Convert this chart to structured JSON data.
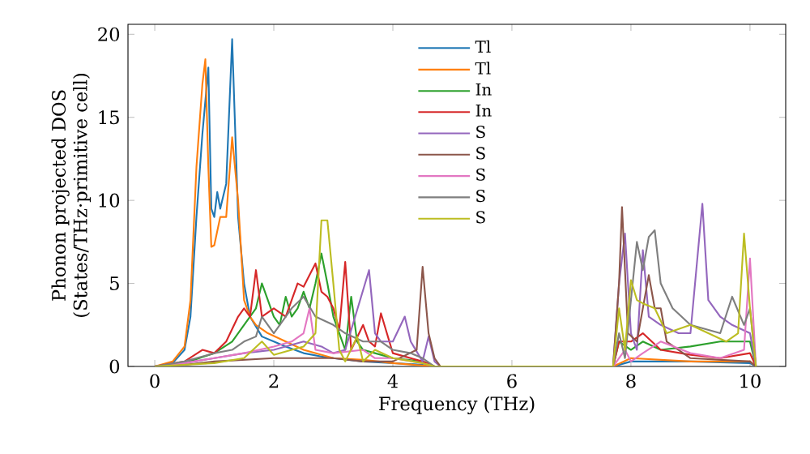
{
  "chart_data": {
    "type": "line",
    "xlabel": "Frequency (THz)",
    "ylabel": "Phonon projected DOS\n(States/THz·primitive cell)",
    "xlim": [
      -0.45,
      10.6
    ],
    "ylim": [
      0,
      20.6
    ],
    "xticks": [
      0,
      2,
      4,
      6,
      8,
      10
    ],
    "yticks": [
      0,
      5,
      10,
      15,
      20
    ],
    "legend": "top",
    "series": [
      {
        "name": "Tl",
        "color": "#1f77b4",
        "x": [
          0,
          0.3,
          0.5,
          0.6,
          0.7,
          0.8,
          0.9,
          0.95,
          1.0,
          1.05,
          1.1,
          1.2,
          1.3,
          1.4,
          1.5,
          1.6,
          1.8,
          2.0,
          2.2,
          2.5,
          2.8,
          3.0,
          3.5,
          4.0,
          4.5,
          4.7,
          7.7,
          8,
          9,
          10,
          10.1
        ],
        "values": [
          0,
          0.2,
          1,
          3,
          9,
          14,
          18,
          9.5,
          9,
          10.5,
          9.5,
          11,
          19.7,
          9,
          5,
          3,
          1.8,
          1.5,
          1.2,
          0.8,
          0.6,
          0.5,
          0.3,
          0.2,
          0.1,
          0,
          0,
          0.3,
          0.3,
          0.2,
          0
        ]
      },
      {
        "name": "Tl",
        "color": "#ff7f0e",
        "x": [
          0,
          0.3,
          0.5,
          0.6,
          0.7,
          0.8,
          0.85,
          0.9,
          0.95,
          1.0,
          1.1,
          1.2,
          1.3,
          1.4,
          1.5,
          1.6,
          1.7,
          1.9,
          2.2,
          2.5,
          3,
          3.5,
          4,
          4.7,
          7.7,
          8,
          9,
          10,
          10.1
        ],
        "values": [
          0,
          0.3,
          1.2,
          4,
          12,
          17,
          18.5,
          12,
          7.2,
          7.3,
          9,
          9,
          13.8,
          10,
          4,
          3,
          2.5,
          2,
          1.5,
          1,
          0.5,
          0.4,
          0.2,
          0,
          0,
          0.5,
          0.3,
          0.3,
          0
        ]
      },
      {
        "name": "In",
        "color": "#2ca02c",
        "x": [
          0,
          0.5,
          1,
          1.3,
          1.5,
          1.7,
          1.8,
          1.9,
          2,
          2.1,
          2.2,
          2.3,
          2.4,
          2.5,
          2.6,
          2.7,
          2.8,
          2.9,
          3.0,
          3.1,
          3.2,
          3.3,
          3.4,
          3.5,
          3.7,
          4,
          4.5,
          4.7,
          7.7,
          7.8,
          8,
          8.2,
          8.5,
          9,
          9.5,
          10,
          10.1
        ],
        "values": [
          0,
          0.2,
          0.8,
          1.5,
          2.5,
          3.5,
          5,
          4,
          3,
          2.5,
          4.2,
          3,
          3.5,
          4.5,
          3.5,
          5,
          6.8,
          5,
          3,
          2,
          1,
          4.2,
          1.5,
          1,
          0.8,
          0.5,
          0.3,
          0,
          0,
          1.5,
          1,
          1.5,
          1,
          1.2,
          1.5,
          1.5,
          0
        ]
      },
      {
        "name": "In",
        "color": "#d62728",
        "x": [
          0,
          0.5,
          0.8,
          1,
          1.2,
          1.4,
          1.5,
          1.6,
          1.7,
          1.8,
          2.0,
          2.2,
          2.4,
          2.5,
          2.6,
          2.7,
          2.8,
          2.9,
          3.0,
          3.1,
          3.2,
          3.3,
          3.5,
          3.6,
          3.7,
          3.8,
          4.0,
          4.5,
          4.7,
          7.7,
          7.8,
          8,
          8.2,
          8.5,
          9,
          9.5,
          10,
          10.1
        ],
        "values": [
          0,
          0.3,
          1,
          0.8,
          1.5,
          3,
          3.5,
          3,
          5.8,
          3,
          3.5,
          3,
          5,
          4.8,
          5.5,
          6.2,
          4.5,
          4.2,
          3.5,
          2.2,
          6.3,
          1,
          2.5,
          1.5,
          1.2,
          3.2,
          0.8,
          0.3,
          0,
          0,
          1.5,
          1.5,
          2,
          1,
          0.7,
          0.5,
          0.8,
          0
        ]
      },
      {
        "name": "S",
        "color": "#9467bd",
        "x": [
          0,
          0.5,
          1,
          1.5,
          2,
          2.5,
          2.8,
          3,
          3.2,
          3.6,
          3.7,
          3.8,
          4,
          4.2,
          4.3,
          4.5,
          4.6,
          4.7,
          4.8,
          7.7,
          7.8,
          7.9,
          8,
          8.1,
          8.2,
          8.3,
          8.5,
          8.8,
          9.0,
          9.2,
          9.3,
          9.5,
          9.7,
          10,
          10.1
        ],
        "values": [
          0,
          0.2,
          0.5,
          0.8,
          1,
          1.5,
          1.2,
          0.8,
          1,
          5.8,
          2,
          1.5,
          1.5,
          3,
          1.5,
          0.3,
          1.8,
          0.3,
          0,
          0,
          5,
          8,
          2,
          1,
          7,
          3,
          2.5,
          2,
          2,
          9.8,
          4,
          3,
          2.5,
          2,
          0
        ]
      },
      {
        "name": "S",
        "color": "#8c564b",
        "x": [
          0,
          0.5,
          1,
          2,
          3,
          3.5,
          4,
          4.4,
          4.5,
          4.6,
          4.7,
          4.8,
          7.7,
          7.8,
          7.85,
          7.95,
          8.1,
          8.3,
          8.4,
          8.5,
          8.6,
          8.8,
          9,
          10,
          10.1
        ],
        "values": [
          0,
          0.1,
          0.3,
          0.5,
          0.5,
          0.3,
          0.3,
          1,
          6,
          2,
          0.5,
          0,
          0,
          5,
          9.6,
          2,
          1.5,
          5.5,
          3.5,
          3.5,
          1.5,
          1,
          0.5,
          0.3,
          0
        ]
      },
      {
        "name": "S",
        "color": "#e377c2",
        "x": [
          0,
          0.5,
          1,
          1.5,
          2,
          2.3,
          2.5,
          2.6,
          2.7,
          3,
          3.5,
          3.7,
          4,
          4.5,
          4.7,
          7.7,
          7.9,
          8,
          8.2,
          8.5,
          9,
          9.5,
          9.9,
          10,
          10.1
        ],
        "values": [
          0,
          0.2,
          0.5,
          0.8,
          1.2,
          1.5,
          2,
          3.5,
          1,
          0.8,
          1,
          0.5,
          0.5,
          0.2,
          0,
          0,
          1,
          0.3,
          0.8,
          1.5,
          0.8,
          0.5,
          1,
          6.5,
          0
        ]
      },
      {
        "name": "S",
        "color": "#7f7f7f",
        "x": [
          0,
          0.5,
          1,
          1.3,
          1.5,
          1.7,
          1.8,
          2,
          2.3,
          2.5,
          2.7,
          3,
          3.2,
          3.5,
          3.8,
          4,
          4.3,
          4.5,
          4.7,
          7.7,
          7.8,
          7.9,
          8.1,
          8.2,
          8.3,
          8.4,
          8.5,
          8.7,
          9,
          9.5,
          9.7,
          9.9,
          10,
          10.1
        ],
        "values": [
          0,
          0.3,
          0.8,
          1,
          1.5,
          1.8,
          3,
          2,
          3.5,
          4.2,
          3,
          2.5,
          2,
          1.5,
          1.5,
          1,
          0.8,
          0.5,
          0,
          0,
          2,
          0.5,
          7.5,
          5.8,
          7.8,
          8.2,
          5,
          3.5,
          2.5,
          2,
          4.2,
          2.5,
          3.5,
          0
        ]
      },
      {
        "name": "S",
        "color": "#bcbd22",
        "x": [
          0,
          0.5,
          1,
          1.5,
          1.8,
          2,
          2.3,
          2.5,
          2.7,
          2.8,
          2.9,
          3.0,
          3.1,
          3.2,
          3.4,
          3.5,
          3.7,
          4,
          4.5,
          4.7,
          7.7,
          7.8,
          7.9,
          8,
          8.1,
          8.2,
          8.4,
          8.6,
          9,
          9.3,
          9.6,
          9.8,
          9.9,
          10,
          10.1
        ],
        "values": [
          0,
          0.1,
          0.2,
          0.5,
          1.5,
          0.7,
          1,
          1.2,
          2,
          8.8,
          8.8,
          5,
          1,
          0.3,
          1.8,
          0.3,
          1,
          0.5,
          0.2,
          0,
          0,
          3.5,
          1,
          5.2,
          4,
          3.8,
          3.5,
          2,
          2.5,
          2,
          1.5,
          2,
          8,
          3.5,
          0
        ]
      }
    ]
  }
}
